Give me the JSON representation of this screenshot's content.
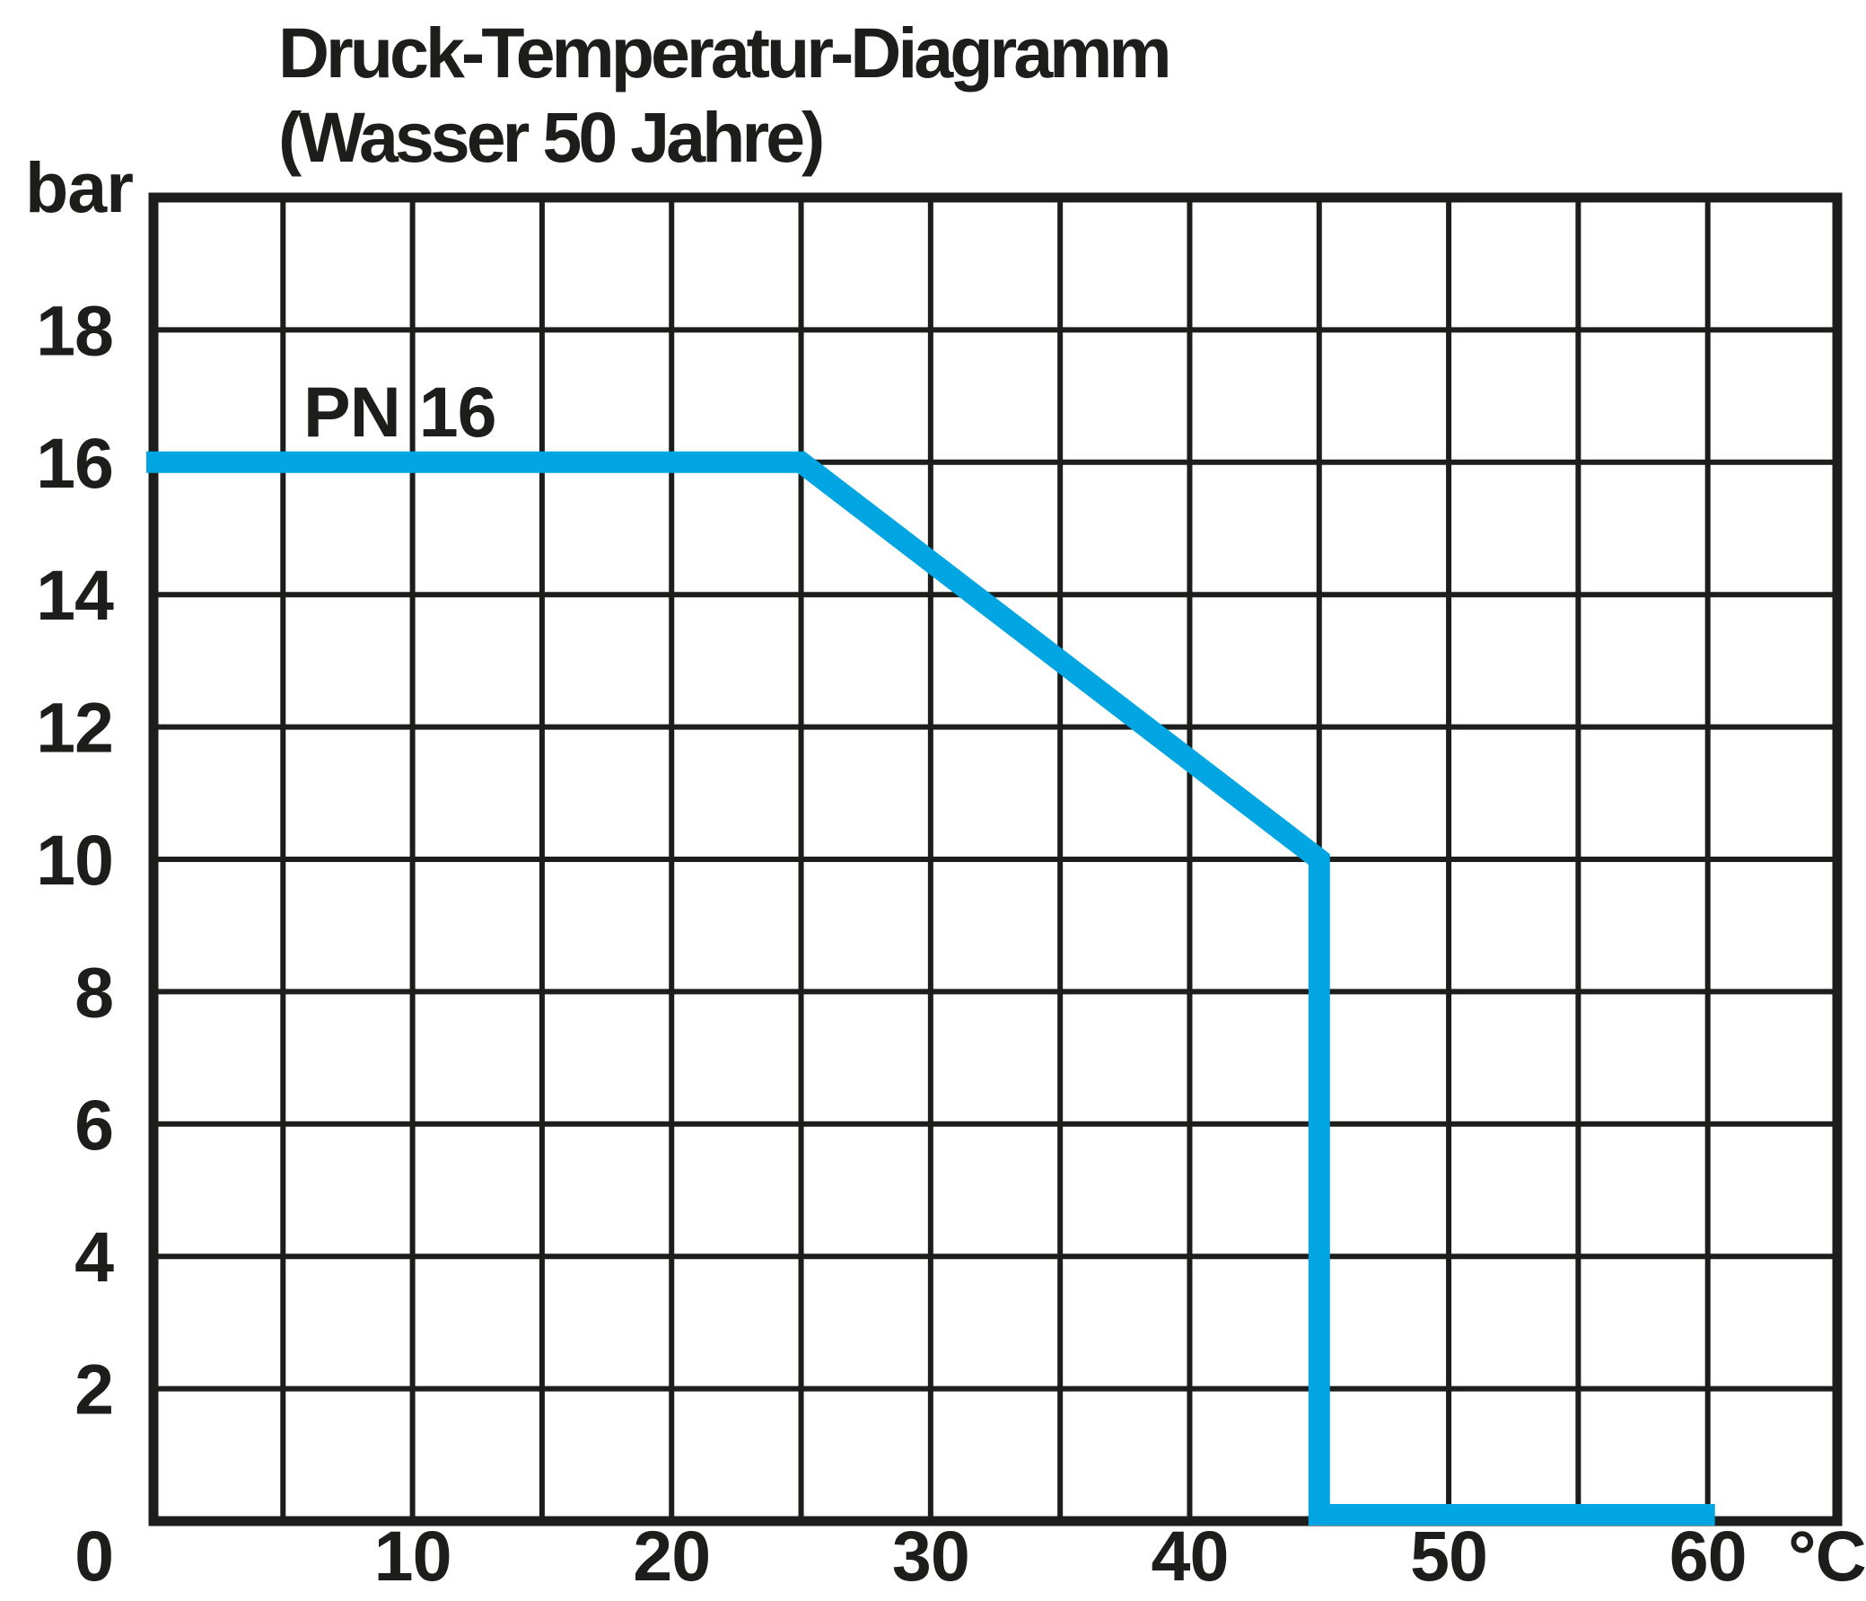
{
  "page": {
    "background": "#ffffff"
  },
  "chart_data": {
    "type": "line",
    "title": "Druck-Temperatur-Diagramm",
    "subtitle": "(Wasser 50 Jahre)",
    "grid": true,
    "legend": "none",
    "colors": {
      "ink": "#1d1d1b",
      "curve": "#00a5e1",
      "background": "#ffffff"
    },
    "x_axis": {
      "unit": "°C",
      "min": 0,
      "max": 65,
      "gridline_step": 5,
      "tick_labels": [
        10,
        20,
        30,
        40,
        50,
        60
      ]
    },
    "y_axis": {
      "unit": "bar",
      "min": 0,
      "max": 20,
      "gridline_step": 2,
      "tick_labels": [
        18,
        16,
        14,
        12,
        10,
        8,
        6,
        4,
        2
      ],
      "origin_label": "0"
    },
    "series": [
      {
        "name": "PN 16",
        "label": "PN 16",
        "color": "#00a5e1",
        "points": [
          [
            0,
            16
          ],
          [
            25,
            16
          ],
          [
            45,
            10
          ],
          [
            45,
            0
          ],
          [
            60,
            0
          ]
        ]
      }
    ],
    "annotations": [
      {
        "text": "PN 16",
        "x_c": 6,
        "y_bar": 16.4
      }
    ]
  }
}
